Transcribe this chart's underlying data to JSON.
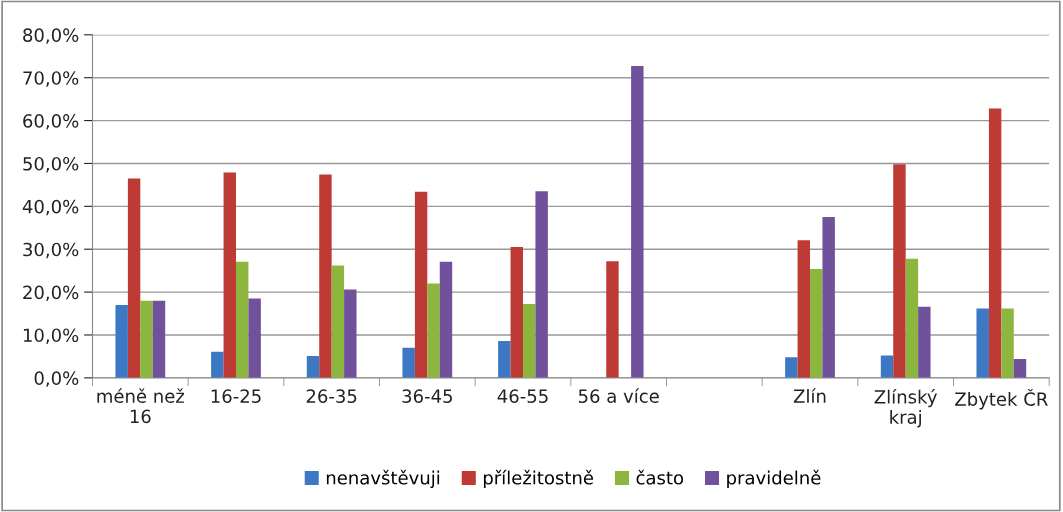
{
  "chart_data": {
    "type": "bar",
    "categories": [
      "méně než\n16",
      "16-25",
      "26-35",
      "36-45",
      "46-55",
      "56 a více",
      null,
      "Zlín",
      "Zlínský\nkraj",
      "Zbytek ČR"
    ],
    "series": [
      {
        "name": "nenavštěvuji",
        "color": "#3c78c3",
        "values": [
          17.0,
          6.1,
          5.1,
          7.0,
          8.6,
          0,
          null,
          4.8,
          5.2,
          16.2
        ]
      },
      {
        "name": "příležitostně",
        "color": "#be3a35",
        "values": [
          46.5,
          47.9,
          47.4,
          43.4,
          30.5,
          27.2,
          null,
          32.1,
          49.8,
          62.8
        ]
      },
      {
        "name": "často",
        "color": "#8db63f",
        "values": [
          18.0,
          27.1,
          26.2,
          22.0,
          17.2,
          0,
          null,
          25.4,
          27.8,
          16.2
        ]
      },
      {
        "name": "pravidelně",
        "color": "#70519b",
        "values": [
          18.0,
          18.5,
          20.6,
          27.1,
          43.5,
          72.7,
          null,
          37.5,
          16.6,
          4.4
        ]
      }
    ],
    "ylim": [
      0,
      80
    ],
    "yticks": [
      {
        "value": 0,
        "label": "0,0%"
      },
      {
        "value": 10,
        "label": "10,0%"
      },
      {
        "value": 20,
        "label": "20,0%"
      },
      {
        "value": 30,
        "label": "30,0%"
      },
      {
        "value": 40,
        "label": "40,0%"
      },
      {
        "value": 50,
        "label": "50,0%"
      },
      {
        "value": 60,
        "label": "60,0%"
      },
      {
        "value": 70,
        "label": "70,0%"
      },
      {
        "value": 80,
        "label": "80,0%"
      }
    ],
    "grid": "y",
    "legend": "bottom"
  }
}
